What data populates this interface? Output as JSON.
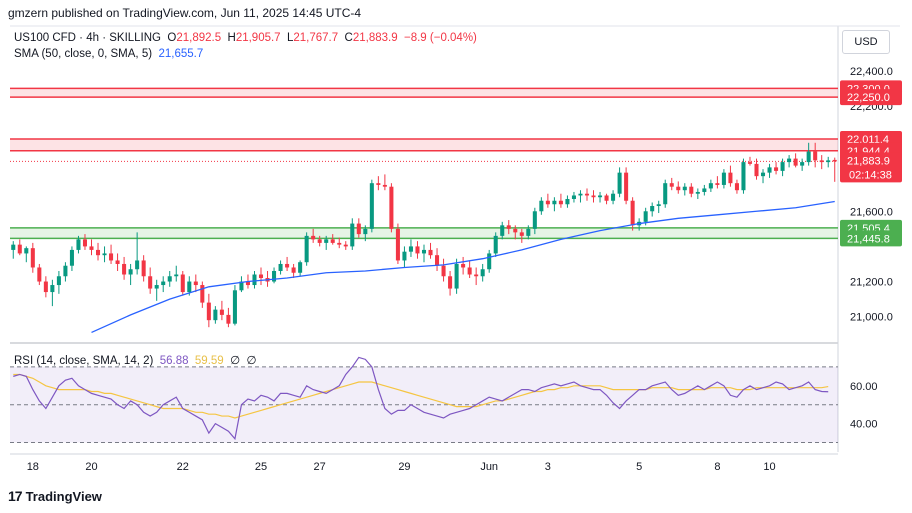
{
  "header": {
    "publisher": "gmzern published on TradingView.com, Jun 11, 2025 14:45 UTC-4"
  },
  "legend": {
    "symbol": "US100 CFD · 4h · SKILLING",
    "o_label": "O",
    "o_value": "21,892.5",
    "h_label": "H",
    "h_value": "21,905.7",
    "l_label": "L",
    "l_value": "21,767.7",
    "c_label": "C",
    "c_value": "21,883.9",
    "change": "−8.9 (−0.04%)",
    "sma_label": "SMA (50, close, 0, SMA, 5)",
    "sma_value": "21,655.7"
  },
  "rsi_legend": {
    "label": "RSI (14, close, SMA, 14, 2)",
    "rsi_value": "56.88",
    "sma_value": "59.59",
    "z1": "∅",
    "z2": "∅"
  },
  "currency": "USD",
  "logo": {
    "mark": "17",
    "text": "TradingView"
  },
  "colors": {
    "up": "#089981",
    "down": "#f23645",
    "sma": "#2962ff",
    "rsi": "#7e57c2",
    "rsi_sma": "#f5c542",
    "res_zone": "#f23645",
    "sup_zone": "#4caf50"
  },
  "chart_data": [
    {
      "type": "candlestick",
      "title": "US100 CFD · 4h · SKILLING",
      "ylim": [
        20850,
        22450
      ],
      "y_ticks": [
        22400,
        22200,
        21600,
        21200,
        21000
      ],
      "y_tick_labels": [
        "22,400.0",
        "22,200.0",
        "21,600.0",
        "21,200.0",
        "21,000.0"
      ],
      "x_tick_labels": [
        "18",
        "20",
        "22",
        "25",
        "27",
        "29",
        "Jun",
        "3",
        "5",
        "8",
        "10"
      ],
      "x_tick_index": [
        3,
        12,
        26,
        38,
        47,
        60,
        73,
        82,
        96,
        108,
        116
      ],
      "bars": 127,
      "candles": [
        [
          21380,
          21430,
          21330,
          21410
        ],
        [
          21410,
          21440,
          21350,
          21360
        ],
        [
          21360,
          21400,
          21310,
          21390
        ],
        [
          21390,
          21420,
          21250,
          21280
        ],
        [
          21280,
          21300,
          21180,
          21200
        ],
        [
          21200,
          21230,
          21110,
          21140
        ],
        [
          21140,
          21210,
          21060,
          21180
        ],
        [
          21180,
          21260,
          21130,
          21230
        ],
        [
          21230,
          21310,
          21200,
          21290
        ],
        [
          21290,
          21400,
          21260,
          21380
        ],
        [
          21380,
          21460,
          21360,
          21440
        ],
        [
          21440,
          21470,
          21380,
          21400
        ],
        [
          21400,
          21440,
          21350,
          21380
        ],
        [
          21380,
          21420,
          21320,
          21350
        ],
        [
          21350,
          21400,
          21310,
          21360
        ],
        [
          21360,
          21410,
          21300,
          21320
        ],
        [
          21320,
          21360,
          21260,
          21300
        ],
        [
          21300,
          21340,
          21210,
          21240
        ],
        [
          21240,
          21300,
          21180,
          21270
        ],
        [
          21270,
          21480,
          21240,
          21320
        ],
        [
          21320,
          21350,
          21200,
          21230
        ],
        [
          21230,
          21280,
          21130,
          21160
        ],
        [
          21160,
          21210,
          21090,
          21180
        ],
        [
          21180,
          21230,
          21140,
          21200
        ],
        [
          21200,
          21260,
          21170,
          21230
        ],
        [
          21230,
          21290,
          21200,
          21240
        ],
        [
          21240,
          21260,
          21120,
          21140
        ],
        [
          21140,
          21230,
          21120,
          21200
        ],
        [
          21200,
          21240,
          21140,
          21180
        ],
        [
          21180,
          21200,
          21050,
          21080
        ],
        [
          21080,
          21130,
          20940,
          20980
        ],
        [
          20980,
          21060,
          20960,
          21040
        ],
        [
          21040,
          21090,
          20980,
          21010
        ],
        [
          21010,
          21050,
          20940,
          20960
        ],
        [
          20960,
          21180,
          20950,
          21150
        ],
        [
          21150,
          21230,
          21140,
          21200
        ],
        [
          21200,
          21240,
          21160,
          21180
        ],
        [
          21180,
          21260,
          21160,
          21240
        ],
        [
          21240,
          21280,
          21180,
          21220
        ],
        [
          21220,
          21260,
          21170,
          21200
        ],
        [
          21200,
          21280,
          21190,
          21260
        ],
        [
          21260,
          21320,
          21240,
          21300
        ],
        [
          21300,
          21340,
          21260,
          21280
        ],
        [
          21280,
          21300,
          21220,
          21250
        ],
        [
          21250,
          21320,
          21230,
          21310
        ],
        [
          21310,
          21480,
          21290,
          21460
        ],
        [
          21460,
          21500,
          21420,
          21440
        ],
        [
          21440,
          21460,
          21400,
          21420
        ],
        [
          21420,
          21460,
          21380,
          21440
        ],
        [
          21440,
          21470,
          21410,
          21420
        ],
        [
          21420,
          21450,
          21390,
          21410
        ],
        [
          21410,
          21430,
          21380,
          21400
        ],
        [
          21400,
          21560,
          21380,
          21530
        ],
        [
          21530,
          21560,
          21450,
          21470
        ],
        [
          21470,
          21520,
          21430,
          21500
        ],
        [
          21500,
          21780,
          21480,
          21760
        ],
        [
          21760,
          21800,
          21720,
          21750
        ],
        [
          21750,
          21810,
          21720,
          21740
        ],
        [
          21740,
          21760,
          21480,
          21500
        ],
        [
          21500,
          21530,
          21300,
          21320
        ],
        [
          21320,
          21400,
          21280,
          21370
        ],
        [
          21370,
          21440,
          21340,
          21400
        ],
        [
          21400,
          21430,
          21330,
          21360
        ],
        [
          21360,
          21410,
          21310,
          21380
        ],
        [
          21380,
          21420,
          21330,
          21350
        ],
        [
          21350,
          21390,
          21260,
          21290
        ],
        [
          21290,
          21330,
          21200,
          21230
        ],
        [
          21230,
          21260,
          21120,
          21160
        ],
        [
          21160,
          21330,
          21130,
          21300
        ],
        [
          21300,
          21340,
          21240,
          21280
        ],
        [
          21280,
          21320,
          21220,
          21240
        ],
        [
          21240,
          21280,
          21180,
          21230
        ],
        [
          21230,
          21300,
          21200,
          21270
        ],
        [
          21270,
          21380,
          21250,
          21360
        ],
        [
          21360,
          21480,
          21340,
          21460
        ],
        [
          21460,
          21540,
          21440,
          21520
        ],
        [
          21520,
          21550,
          21470,
          21500
        ],
        [
          21500,
          21520,
          21440,
          21480
        ],
        [
          21480,
          21500,
          21420,
          21460
        ],
        [
          21460,
          21520,
          21440,
          21500
        ],
        [
          21500,
          21620,
          21470,
          21600
        ],
        [
          21600,
          21680,
          21580,
          21660
        ],
        [
          21660,
          21700,
          21620,
          21640
        ],
        [
          21640,
          21680,
          21600,
          21660
        ],
        [
          21660,
          21700,
          21620,
          21640
        ],
        [
          21640,
          21690,
          21620,
          21670
        ],
        [
          21670,
          21710,
          21650,
          21690
        ],
        [
          21690,
          21720,
          21650,
          21700
        ],
        [
          21700,
          21730,
          21660,
          21690
        ],
        [
          21690,
          21720,
          21650,
          21680
        ],
        [
          21680,
          21710,
          21650,
          21690
        ],
        [
          21690,
          21700,
          21640,
          21660
        ],
        [
          21660,
          21720,
          21640,
          21700
        ],
        [
          21700,
          21850,
          21680,
          21820
        ],
        [
          21820,
          21850,
          21640,
          21660
        ],
        [
          21660,
          21680,
          21490,
          21520
        ],
        [
          21520,
          21560,
          21490,
          21540
        ],
        [
          21540,
          21620,
          21520,
          21600
        ],
        [
          21600,
          21650,
          21570,
          21630
        ],
        [
          21630,
          21660,
          21590,
          21640
        ],
        [
          21640,
          21780,
          21620,
          21760
        ],
        [
          21760,
          21790,
          21720,
          21740
        ],
        [
          21740,
          21770,
          21700,
          21720
        ],
        [
          21720,
          21760,
          21690,
          21740
        ],
        [
          21740,
          21760,
          21680,
          21700
        ],
        [
          21700,
          21730,
          21670,
          21710
        ],
        [
          21710,
          21750,
          21690,
          21730
        ],
        [
          21730,
          21780,
          21710,
          21760
        ],
        [
          21760,
          21800,
          21730,
          21750
        ],
        [
          21750,
          21840,
          21730,
          21820
        ],
        [
          21820,
          21860,
          21740,
          21760
        ],
        [
          21760,
          21780,
          21700,
          21720
        ],
        [
          21720,
          21900,
          21700,
          21880
        ],
        [
          21880,
          21910,
          21860,
          21870
        ],
        [
          21870,
          21900,
          21780,
          21800
        ],
        [
          21800,
          21840,
          21760,
          21820
        ],
        [
          21820,
          21870,
          21790,
          21850
        ],
        [
          21850,
          21880,
          21810,
          21830
        ],
        [
          21830,
          21900,
          21800,
          21880
        ],
        [
          21880,
          21920,
          21850,
          21900
        ],
        [
          21900,
          21930,
          21850,
          21860
        ],
        [
          21860,
          21900,
          21830,
          21880
        ],
        [
          21880,
          21990,
          21860,
          21940
        ],
        [
          21940,
          21990,
          21850,
          21890
        ],
        [
          21890,
          21920,
          21840,
          21880
        ],
        [
          21880,
          21910,
          21850,
          21890
        ],
        [
          21892.5,
          21905.7,
          21767.7,
          21883.9
        ]
      ],
      "sma": [
        [
          12,
          20910
        ],
        [
          18,
          21010
        ],
        [
          24,
          21100
        ],
        [
          30,
          21170
        ],
        [
          36,
          21200
        ],
        [
          42,
          21220
        ],
        [
          48,
          21250
        ],
        [
          54,
          21260
        ],
        [
          60,
          21280
        ],
        [
          66,
          21295
        ],
        [
          72,
          21330
        ],
        [
          78,
          21380
        ],
        [
          84,
          21440
        ],
        [
          90,
          21490
        ],
        [
          96,
          21530
        ],
        [
          102,
          21560
        ],
        [
          108,
          21580
        ],
        [
          114,
          21600
        ],
        [
          120,
          21620
        ],
        [
          126,
          21655.7
        ]
      ],
      "zones": [
        {
          "kind": "resistance",
          "top": 22300.0,
          "bottom": 22250.0,
          "label_top": "22,300.0",
          "label_bottom": "22,250.0"
        },
        {
          "kind": "resistance",
          "top": 22011.4,
          "bottom": 21944.4,
          "label_top": "22,011.4",
          "label_bottom": "21,944.4"
        },
        {
          "kind": "support",
          "top": 21505.4,
          "bottom": 21445.8,
          "label_top": "21,505.4",
          "label_bottom": "21,445.8"
        }
      ],
      "last_price": {
        "value": 21883.9,
        "label": "21,883.9",
        "countdown": "02:14:38"
      }
    },
    {
      "type": "line",
      "title": "RSI (14, close, SMA, 14, 2)",
      "ylim": [
        25,
        80
      ],
      "y_ticks": [
        60,
        40
      ],
      "y_tick_labels": [
        "60.00",
        "40.00"
      ],
      "bands": [
        70,
        50,
        30
      ],
      "series": [
        {
          "name": "RSI",
          "values": [
            65,
            66,
            65,
            58,
            52,
            48,
            54,
            60,
            63,
            64,
            60,
            58,
            56,
            55,
            54,
            53,
            50,
            48,
            52,
            50,
            46,
            44,
            46,
            50,
            52,
            54,
            48,
            46,
            44,
            42,
            35,
            40,
            38,
            36,
            32,
            50,
            53,
            52,
            55,
            54,
            52,
            56,
            56,
            55,
            54,
            60,
            58,
            57,
            56,
            58,
            60,
            66,
            70,
            75,
            74,
            70,
            58,
            48,
            45,
            47,
            47,
            50,
            48,
            46,
            45,
            44,
            43,
            45,
            46,
            47,
            48,
            50,
            52,
            54,
            53,
            52,
            54,
            56,
            58,
            58,
            57,
            59,
            60,
            61,
            60,
            61,
            62,
            60,
            59,
            58,
            58,
            55,
            51,
            48,
            52,
            55,
            58,
            58,
            60,
            61,
            62,
            58,
            55,
            56,
            58,
            60,
            58,
            60,
            62,
            60,
            55,
            54,
            58,
            60,
            58,
            59,
            60,
            62,
            61,
            58,
            59,
            60,
            62,
            58,
            57,
            56.88
          ]
        },
        {
          "name": "RSI-SMA",
          "values": [
            66,
            66,
            65,
            64,
            62,
            60,
            59,
            58,
            58,
            58,
            58,
            58,
            57,
            57,
            56,
            56,
            55,
            54,
            53,
            52,
            51,
            50,
            49,
            48,
            48,
            48,
            48,
            47,
            46,
            46,
            45,
            45,
            44,
            44,
            43,
            44,
            45,
            46,
            47,
            48,
            49,
            50,
            51,
            52,
            53,
            54,
            55,
            56,
            57,
            58,
            59,
            60,
            61,
            62,
            62,
            62,
            61,
            60,
            59,
            58,
            57,
            56,
            55,
            54,
            53,
            52,
            51,
            50,
            49,
            49,
            49,
            49,
            50,
            51,
            52,
            52,
            53,
            54,
            55,
            56,
            57,
            57,
            58,
            58,
            59,
            59,
            60,
            60,
            60,
            60,
            60,
            59,
            58,
            58,
            58,
            58,
            58,
            58,
            59,
            59,
            59,
            59,
            58,
            58,
            58,
            58,
            58,
            59,
            59,
            59,
            59,
            58,
            58,
            58,
            59,
            59,
            59,
            59,
            59,
            59,
            59,
            59,
            59,
            59,
            59,
            59.59
          ]
        }
      ],
      "legend": {
        "rsi": "56.88",
        "sma": "59.59"
      }
    }
  ]
}
